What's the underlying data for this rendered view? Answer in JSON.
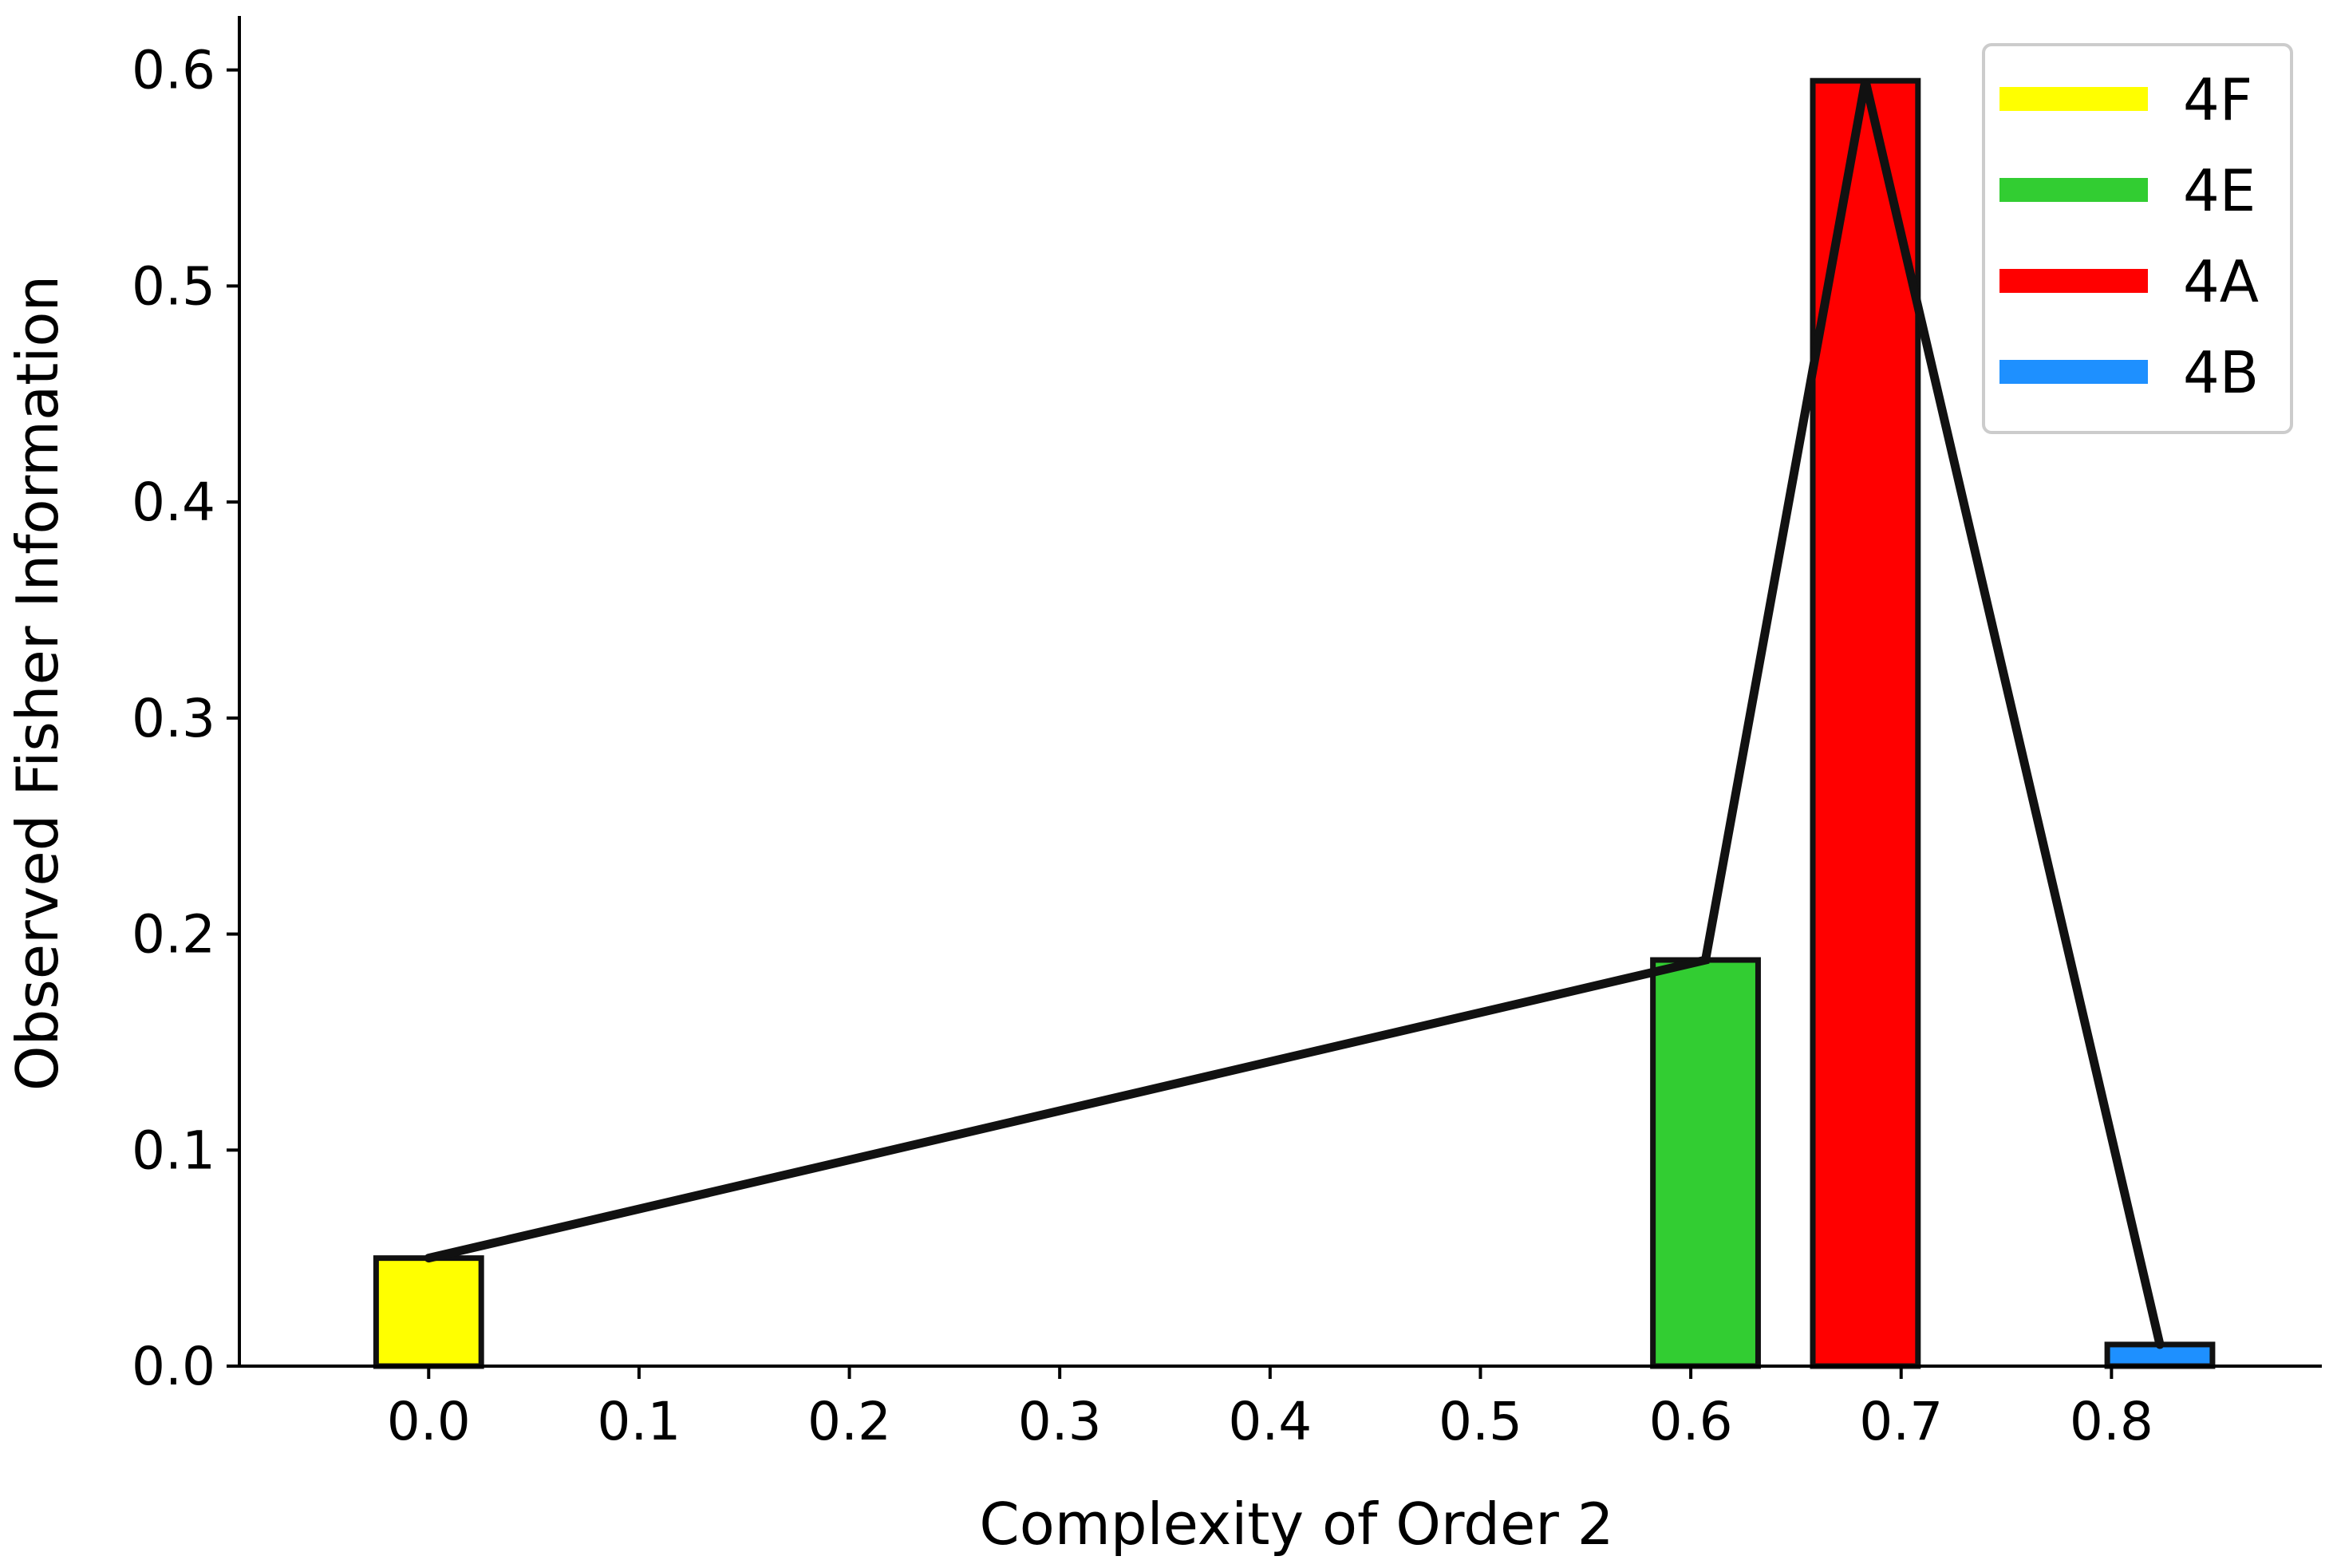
{
  "chart_data": {
    "type": "bar",
    "xlabel": "Complexity of Order 2",
    "ylabel": "Observed Fisher Information",
    "xlim": [
      -0.09,
      0.9
    ],
    "ylim": [
      0.0,
      0.625
    ],
    "x_ticks": [
      "0.0",
      "0.1",
      "0.2",
      "0.3",
      "0.4",
      "0.5",
      "0.6",
      "0.7",
      "0.8"
    ],
    "y_ticks": [
      "0.0",
      "0.1",
      "0.2",
      "0.3",
      "0.4",
      "0.5",
      "0.6"
    ],
    "bar_width": 0.05,
    "series": [
      {
        "name": "4F",
        "x": 0.0,
        "value": 0.05,
        "color": "#ffff00"
      },
      {
        "name": "4E",
        "x": 0.607,
        "value": 0.188,
        "color": "#32cd32"
      },
      {
        "name": "4A",
        "x": 0.683,
        "value": 0.595,
        "color": "#ff0000"
      },
      {
        "name": "4B",
        "x": 0.823,
        "value": 0.01,
        "color": "#1e90ff"
      }
    ],
    "line": {
      "color": "#111111",
      "points": [
        [
          0.0,
          0.05
        ],
        [
          0.607,
          0.188
        ],
        [
          0.683,
          0.595
        ],
        [
          0.823,
          0.01
        ]
      ]
    },
    "legend": {
      "position": "top-right",
      "entries": [
        "4F",
        "4E",
        "4A",
        "4B"
      ]
    },
    "grid": false
  }
}
